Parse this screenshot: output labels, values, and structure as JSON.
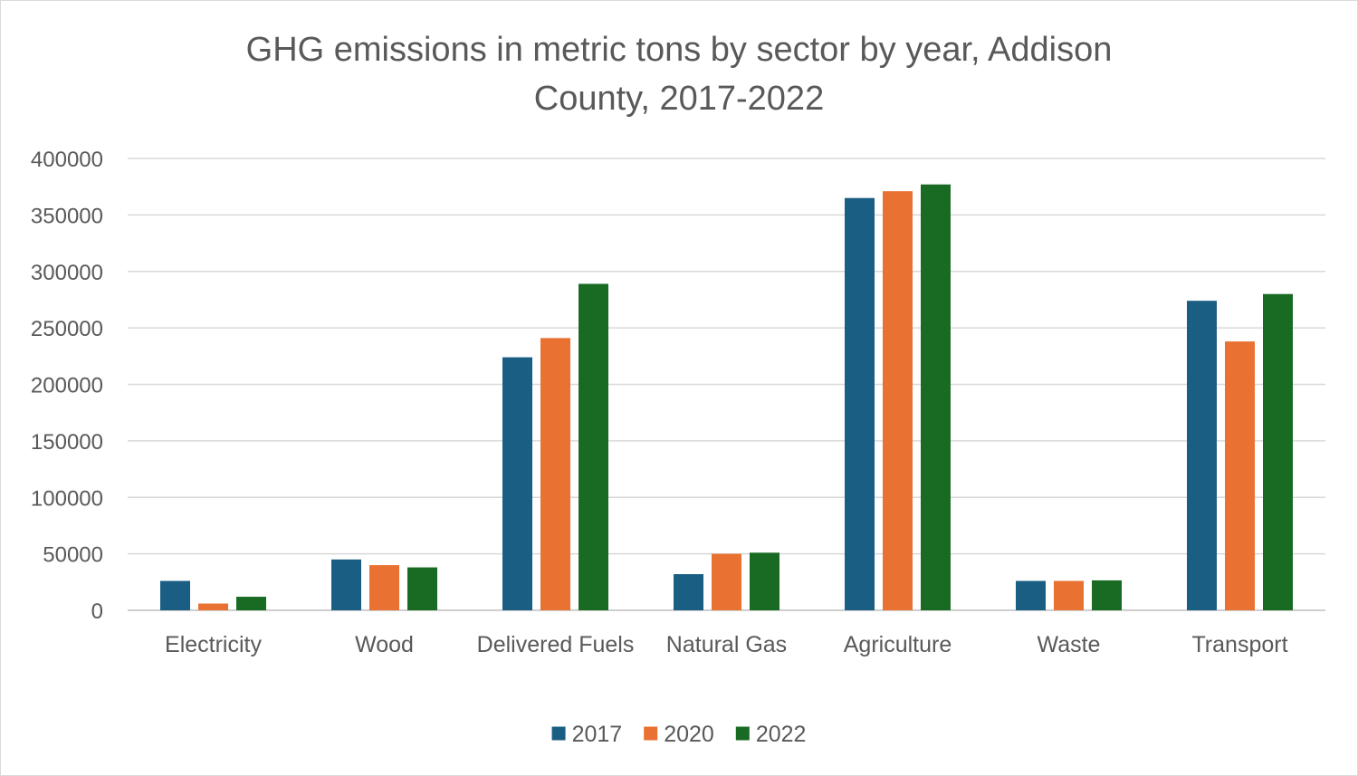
{
  "chart_data": {
    "type": "bar",
    "title": "GHG emissions in metric tons by sector by year, Addison County, 2017-2022",
    "title_lines": [
      "GHG emissions in metric tons by sector by year, Addison",
      "County, 2017-2022"
    ],
    "categories": [
      "Electricity",
      "Wood",
      "Delivered Fuels",
      "Natural Gas",
      "Agriculture",
      "Waste",
      "Transport"
    ],
    "series": [
      {
        "name": "2017",
        "color": "#1a5e84",
        "values": [
          26000,
          45000,
          224000,
          32000,
          365000,
          26000,
          274000
        ]
      },
      {
        "name": "2020",
        "color": "#e97132",
        "values": [
          6000,
          40000,
          241000,
          50000,
          371000,
          26000,
          238000
        ]
      },
      {
        "name": "2022",
        "color": "#196b24",
        "values": [
          12000,
          38000,
          289000,
          51000,
          377000,
          26500,
          280000
        ]
      }
    ],
    "ylim": [
      0,
      400000
    ],
    "yticks": [
      0,
      50000,
      100000,
      150000,
      200000,
      250000,
      300000,
      350000,
      400000
    ],
    "xlabel": "",
    "ylabel": "",
    "grid": true,
    "legend": "bottom"
  }
}
